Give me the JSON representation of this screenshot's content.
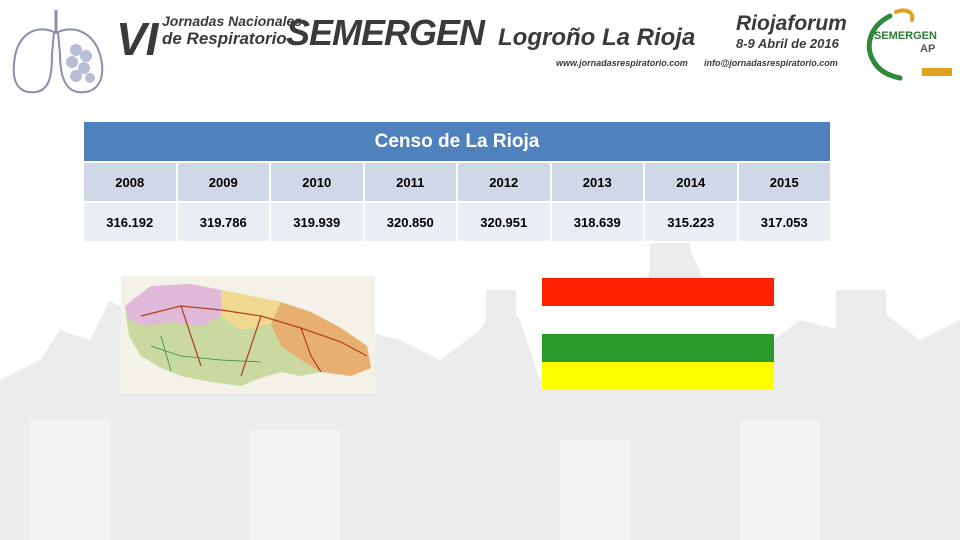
{
  "header": {
    "edition": "VI",
    "event_line1": "Jornadas Nacionales",
    "event_line2": "de Respiratorio",
    "organization": "SEMERGEN",
    "location": "Logroño La Rioja",
    "website": "www.jornadasrespiratorio.com",
    "venue": "Riojaforum",
    "dates": "8-9 Abril de 2016",
    "email": "info@jornadasrespiratorio.com",
    "logo_text": "SEMERGEN",
    "logo_suffix": "AP"
  },
  "table": {
    "title": "Censo de La Rioja",
    "years": [
      "2008",
      "2009",
      "2010",
      "2011",
      "2012",
      "2013",
      "2014",
      "2015"
    ],
    "values": [
      "316.192",
      "319.786",
      "319.939",
      "320.850",
      "320.951",
      "318.639",
      "315.223",
      "317.053"
    ]
  },
  "flag": {
    "colors": [
      "#ff2000",
      "#ffffff",
      "#2a9a2a",
      "#ffff00"
    ]
  },
  "colors": {
    "header_blue": "#4f81bd",
    "row_light": "#d0d8e8",
    "row_lighter": "#e9edf4",
    "background_city": "#efefef"
  }
}
